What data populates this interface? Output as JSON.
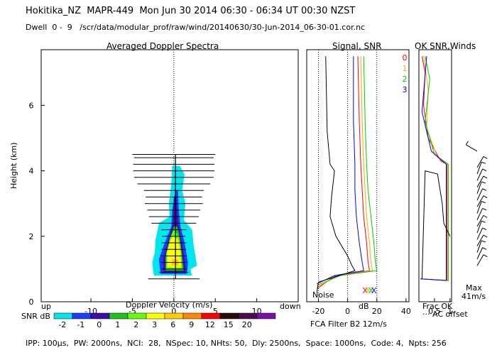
{
  "header": {
    "line1": "Hokitika_NZ  MAPR-449  Mon Jun 30 2014 06:30 - 06:34 UT 00:30 NZST",
    "line2": "Dwell  0 -  9   /scr/data/modular_prof/raw/wind/20140630/30-Jun-2014_06-30-01.cor.nc"
  },
  "footer": {
    "params": "IPP: 100µs,  PW: 2000ns,  NCI:  28,  NSpec: 10, NHts: 50,  Dly: 2500ns,  Space: 1000ns,  Code: 4,  Npts: 256",
    "filter": "FCA Filter B2 12m/s"
  },
  "colors": {
    "snr_scale": [
      "#00e5ee",
      "#1e3cff",
      "#3a0ea8",
      "#20c020",
      "#66ff00",
      "#ffff00",
      "#ffcc00",
      "#ff8800",
      "#ff0000",
      "#2a0a0a",
      "#4b0a4b",
      "#7b0ea8"
    ],
    "channels": [
      "#ff0000",
      "#ffaa00",
      "#00cc00",
      "#0000ff"
    ]
  },
  "chart_data": [
    {
      "type": "heatmap",
      "title": "Averaged Doppler Spectra",
      "xlabel": "Doppler Velocity (m/s)",
      "ylabel": "Height (km)",
      "xlim": [
        -16,
        15
      ],
      "ylim": [
        0,
        7.7
      ],
      "xticks": [
        -10,
        -5,
        0,
        5,
        10
      ],
      "yticks": [
        0,
        2,
        4,
        6
      ],
      "x_left_label": "up",
      "x_right_label": "down",
      "colorbar_label": "SNR dB",
      "colorbar_ticks": [
        "-2",
        "-1",
        "0",
        "1",
        "2",
        "3",
        "6",
        "9",
        "12",
        "15",
        "20"
      ],
      "spectrum_width_profile": [
        {
          "h": 0.7,
          "w": 3.1
        },
        {
          "h": 0.9,
          "w": 1.8
        },
        {
          "h": 1.0,
          "w": 1.5
        },
        {
          "h": 1.2,
          "w": 1.5
        },
        {
          "h": 1.4,
          "w": 1.6
        },
        {
          "h": 1.6,
          "w": 1.5
        },
        {
          "h": 1.8,
          "w": 1.5
        },
        {
          "h": 2.0,
          "w": 1.4
        },
        {
          "h": 2.2,
          "w": 1.5
        },
        {
          "h": 2.4,
          "w": 2.7
        },
        {
          "h": 2.6,
          "w": 3.0
        },
        {
          "h": 2.8,
          "w": 3.2
        },
        {
          "h": 3.0,
          "w": 3.5
        },
        {
          "h": 3.2,
          "w": 3.4
        },
        {
          "h": 3.4,
          "w": 3.6
        },
        {
          "h": 3.6,
          "w": 4.4
        },
        {
          "h": 3.8,
          "w": 4.8
        },
        {
          "h": 4.0,
          "w": 4.9
        },
        {
          "h": 4.2,
          "w": 4.9
        },
        {
          "h": 4.4,
          "w": 4.8
        },
        {
          "h": 4.5,
          "w": 5.0
        }
      ],
      "snr_regions": [
        {
          "snr": "-2",
          "points": [
            [
              -2.4,
              0.8
            ],
            [
              2.2,
              0.8
            ],
            [
              2.0,
              1.0
            ],
            [
              2.8,
              1.1
            ],
            [
              2.4,
              1.7
            ],
            [
              2.2,
              2.2
            ],
            [
              1.2,
              2.5
            ],
            [
              1.4,
              3.0
            ],
            [
              1.0,
              3.4
            ],
            [
              1.3,
              3.9
            ],
            [
              0.7,
              4.15
            ],
            [
              -0.2,
              4.15
            ],
            [
              -0.3,
              3.6
            ],
            [
              -0.6,
              3.0
            ],
            [
              -0.5,
              2.6
            ],
            [
              -1.8,
              2.4
            ],
            [
              -2.2,
              1.9
            ],
            [
              -2.3,
              1.5
            ],
            [
              -2.6,
              1.2
            ],
            [
              -2.5,
              0.95
            ]
          ]
        },
        {
          "snr": "-1",
          "points": [
            [
              -1.6,
              0.85
            ],
            [
              1.6,
              0.85
            ],
            [
              1.7,
              1.2
            ],
            [
              1.3,
              1.8
            ],
            [
              0.8,
              2.3
            ],
            [
              0.6,
              2.8
            ],
            [
              0.5,
              3.4
            ],
            [
              0.2,
              3.4
            ],
            [
              -0.2,
              2.8
            ],
            [
              -0.3,
              2.3
            ],
            [
              -1.1,
              1.8
            ],
            [
              -1.8,
              1.3
            ]
          ]
        },
        {
          "snr": "0",
          "points": [
            [
              -1.2,
              0.9
            ],
            [
              1.4,
              0.9
            ],
            [
              1.3,
              1.3
            ],
            [
              0.9,
              1.9
            ],
            [
              0.5,
              2.4
            ],
            [
              0.3,
              3.2
            ],
            [
              0.0,
              3.2
            ],
            [
              -0.1,
              2.4
            ],
            [
              -0.6,
              1.9
            ],
            [
              -1.3,
              1.3
            ]
          ]
        },
        {
          "snr": "1",
          "points": [
            [
              -1.0,
              0.95
            ],
            [
              1.2,
              0.95
            ],
            [
              1.0,
              1.4
            ],
            [
              0.7,
              2.0
            ],
            [
              0.4,
              2.3
            ],
            [
              0.0,
              2.3
            ],
            [
              -0.3,
              2.0
            ],
            [
              -1.0,
              1.4
            ]
          ]
        },
        {
          "snr": "2",
          "points": [
            [
              -0.9,
              1.0
            ],
            [
              1.0,
              1.0
            ],
            [
              0.9,
              1.5
            ],
            [
              0.6,
              2.0
            ],
            [
              0.0,
              2.2
            ],
            [
              -0.4,
              2.0
            ],
            [
              -0.9,
              1.5
            ]
          ]
        },
        {
          "snr": "3",
          "points": [
            [
              -0.8,
              1.05
            ],
            [
              0.9,
              1.05
            ],
            [
              0.8,
              1.5
            ],
            [
              0.5,
              1.9
            ],
            [
              0.0,
              2.0
            ],
            [
              -0.4,
              1.9
            ],
            [
              -0.8,
              1.5
            ]
          ]
        },
        {
          "snr": "6",
          "points": [
            [
              -0.3,
              1.1
            ],
            [
              0.6,
              1.1
            ],
            [
              0.5,
              1.3
            ],
            [
              -0.2,
              1.3
            ]
          ]
        }
      ]
    },
    {
      "type": "line",
      "title": "Signal, SNR",
      "xlabel": "dB",
      "xlim": [
        -28,
        42
      ],
      "xticks": [
        -20,
        0,
        20,
        40
      ],
      "ylim": [
        0,
        7.7
      ],
      "annotation": "Noise",
      "series": [
        {
          "name": "0",
          "points": [
            [
              -21,
              0.4
            ],
            [
              -8,
              0.8
            ],
            [
              15,
              0.95
            ],
            [
              14,
              1.2
            ],
            [
              13,
              1.8
            ],
            [
              11,
              2.6
            ],
            [
              10,
              3.4
            ],
            [
              9,
              4.2
            ],
            [
              8,
              5.5
            ],
            [
              7,
              7.5
            ]
          ]
        },
        {
          "name": "1",
          "points": [
            [
              -21,
              0.45
            ],
            [
              -6,
              0.8
            ],
            [
              17,
              0.95
            ],
            [
              16,
              1.2
            ],
            [
              15,
              1.8
            ],
            [
              13,
              2.6
            ],
            [
              12,
              3.4
            ],
            [
              11,
              4.2
            ],
            [
              10,
              5.5
            ],
            [
              9,
              7.5
            ]
          ]
        },
        {
          "name": "2",
          "points": [
            [
              -21,
              0.5
            ],
            [
              -5,
              0.8
            ],
            [
              20,
              0.95
            ],
            [
              19,
              1.2
            ],
            [
              18,
              1.8
            ],
            [
              16,
              2.6
            ],
            [
              14,
              3.4
            ],
            [
              13,
              4.2
            ],
            [
              12,
              5.5
            ],
            [
              11,
              7.5
            ]
          ]
        },
        {
          "name": "3",
          "points": [
            [
              -21,
              0.55
            ],
            [
              -9,
              0.8
            ],
            [
              11,
              0.95
            ],
            [
              10,
              1.2
            ],
            [
              8,
              1.8
            ],
            [
              6,
              2.6
            ],
            [
              5,
              3.4
            ],
            [
              5,
              4.2
            ],
            [
              4,
              5.5
            ],
            [
              4,
              7.5
            ]
          ]
        },
        {
          "name": "noise",
          "points": [
            [
              -21,
              0.3
            ],
            [
              -20,
              0.6
            ],
            [
              5,
              0.95
            ],
            [
              3,
              1.1
            ],
            [
              0,
              1.4
            ],
            [
              -8,
              2.0
            ],
            [
              -12,
              2.6
            ],
            [
              -11,
              3.2
            ],
            [
              -9,
              4.0
            ],
            [
              -12,
              4.2
            ],
            [
              -14,
              5.2
            ],
            [
              -15,
              7.5
            ]
          ]
        }
      ]
    },
    {
      "type": "line",
      "title": "OK SNR,Winds",
      "xlabel": "Frac OK",
      "xlim": [
        0,
        1.05
      ],
      "xticks": [
        0.5,
        1
      ],
      "xtick_labels": [
        "0.5",
        "1"
      ],
      "ylim": [
        0,
        7.7
      ],
      "legend": [
        "0",
        "1",
        "2",
        "3"
      ],
      "ac_offset_label": "AC offset",
      "max_label": "Max",
      "max_value": "41m/s",
      "series": [
        {
          "name": "0",
          "points": [
            [
              0.05,
              0.7
            ],
            [
              0.9,
              0.65
            ],
            [
              0.9,
              4.2
            ],
            [
              0.7,
              4.3
            ],
            [
              0.3,
              5.0
            ],
            [
              0.15,
              6.0
            ],
            [
              0.2,
              7.0
            ],
            [
              0.1,
              7.5
            ]
          ]
        },
        {
          "name": "1",
          "points": [
            [
              0.05,
              0.7
            ],
            [
              0.92,
              0.65
            ],
            [
              0.92,
              4.2
            ],
            [
              0.6,
              4.4
            ],
            [
              0.25,
              5.3
            ],
            [
              0.3,
              6.5
            ],
            [
              0.15,
              7.5
            ]
          ]
        },
        {
          "name": "2",
          "points": [
            [
              0.05,
              0.7
            ],
            [
              0.95,
              0.65
            ],
            [
              0.95,
              4.2
            ],
            [
              0.5,
              4.5
            ],
            [
              0.2,
              5.5
            ],
            [
              0.35,
              6.8
            ],
            [
              0.2,
              7.5
            ]
          ]
        },
        {
          "name": "3",
          "points": [
            [
              0.05,
              0.7
            ],
            [
              0.88,
              0.65
            ],
            [
              0.88,
              4.2
            ],
            [
              0.4,
              4.6
            ],
            [
              0.1,
              5.8
            ],
            [
              0.25,
              7.5
            ]
          ]
        },
        {
          "name": "ac_offset",
          "points": [
            [
              0.1,
              0.7
            ],
            [
              0.2,
              4.0
            ],
            [
              0.6,
              3.9
            ],
            [
              0.75,
              3.0
            ],
            [
              0.8,
              2.4
            ],
            [
              1.0,
              2.0
            ]
          ]
        }
      ],
      "winds_heights_km": [
        1.1,
        1.3,
        1.5,
        1.7,
        1.9,
        2.1,
        2.3,
        2.5,
        2.7,
        2.9,
        3.1,
        3.3,
        3.5,
        3.7,
        3.9,
        4.1,
        4.6
      ]
    }
  ]
}
